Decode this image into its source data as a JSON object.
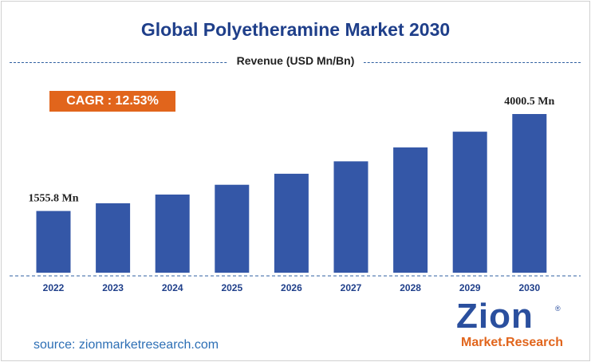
{
  "title": "Global Polyetheramine Market 2030",
  "subtitle": "Revenue (USD Mn/Bn)",
  "cagr_label": "CAGR : 12.53%",
  "source": "source: zionmarketresearch.com",
  "logo": {
    "name": "Zion",
    "sub": "Market.Research",
    "reg": "®"
  },
  "colors": {
    "bar": "#3457a7",
    "title": "#1f3f8a",
    "cagr_bg": "#e1651c",
    "source": "#2d6fb5"
  },
  "chart_data": {
    "type": "bar",
    "categories": [
      "2022",
      "2023",
      "2024",
      "2025",
      "2026",
      "2027",
      "2028",
      "2029",
      "2030"
    ],
    "values": [
      1555.8,
      1750.8,
      1970.1,
      2217.0,
      2494.8,
      2807.4,
      3159.2,
      3555.0,
      4000.5
    ],
    "data_labels": [
      {
        "index": 0,
        "text": "1555.8 Mn"
      },
      {
        "index": 8,
        "text": "4000.5 Mn"
      }
    ],
    "ylim": [
      0,
      4000.5
    ],
    "grid": false,
    "legend": "none"
  }
}
